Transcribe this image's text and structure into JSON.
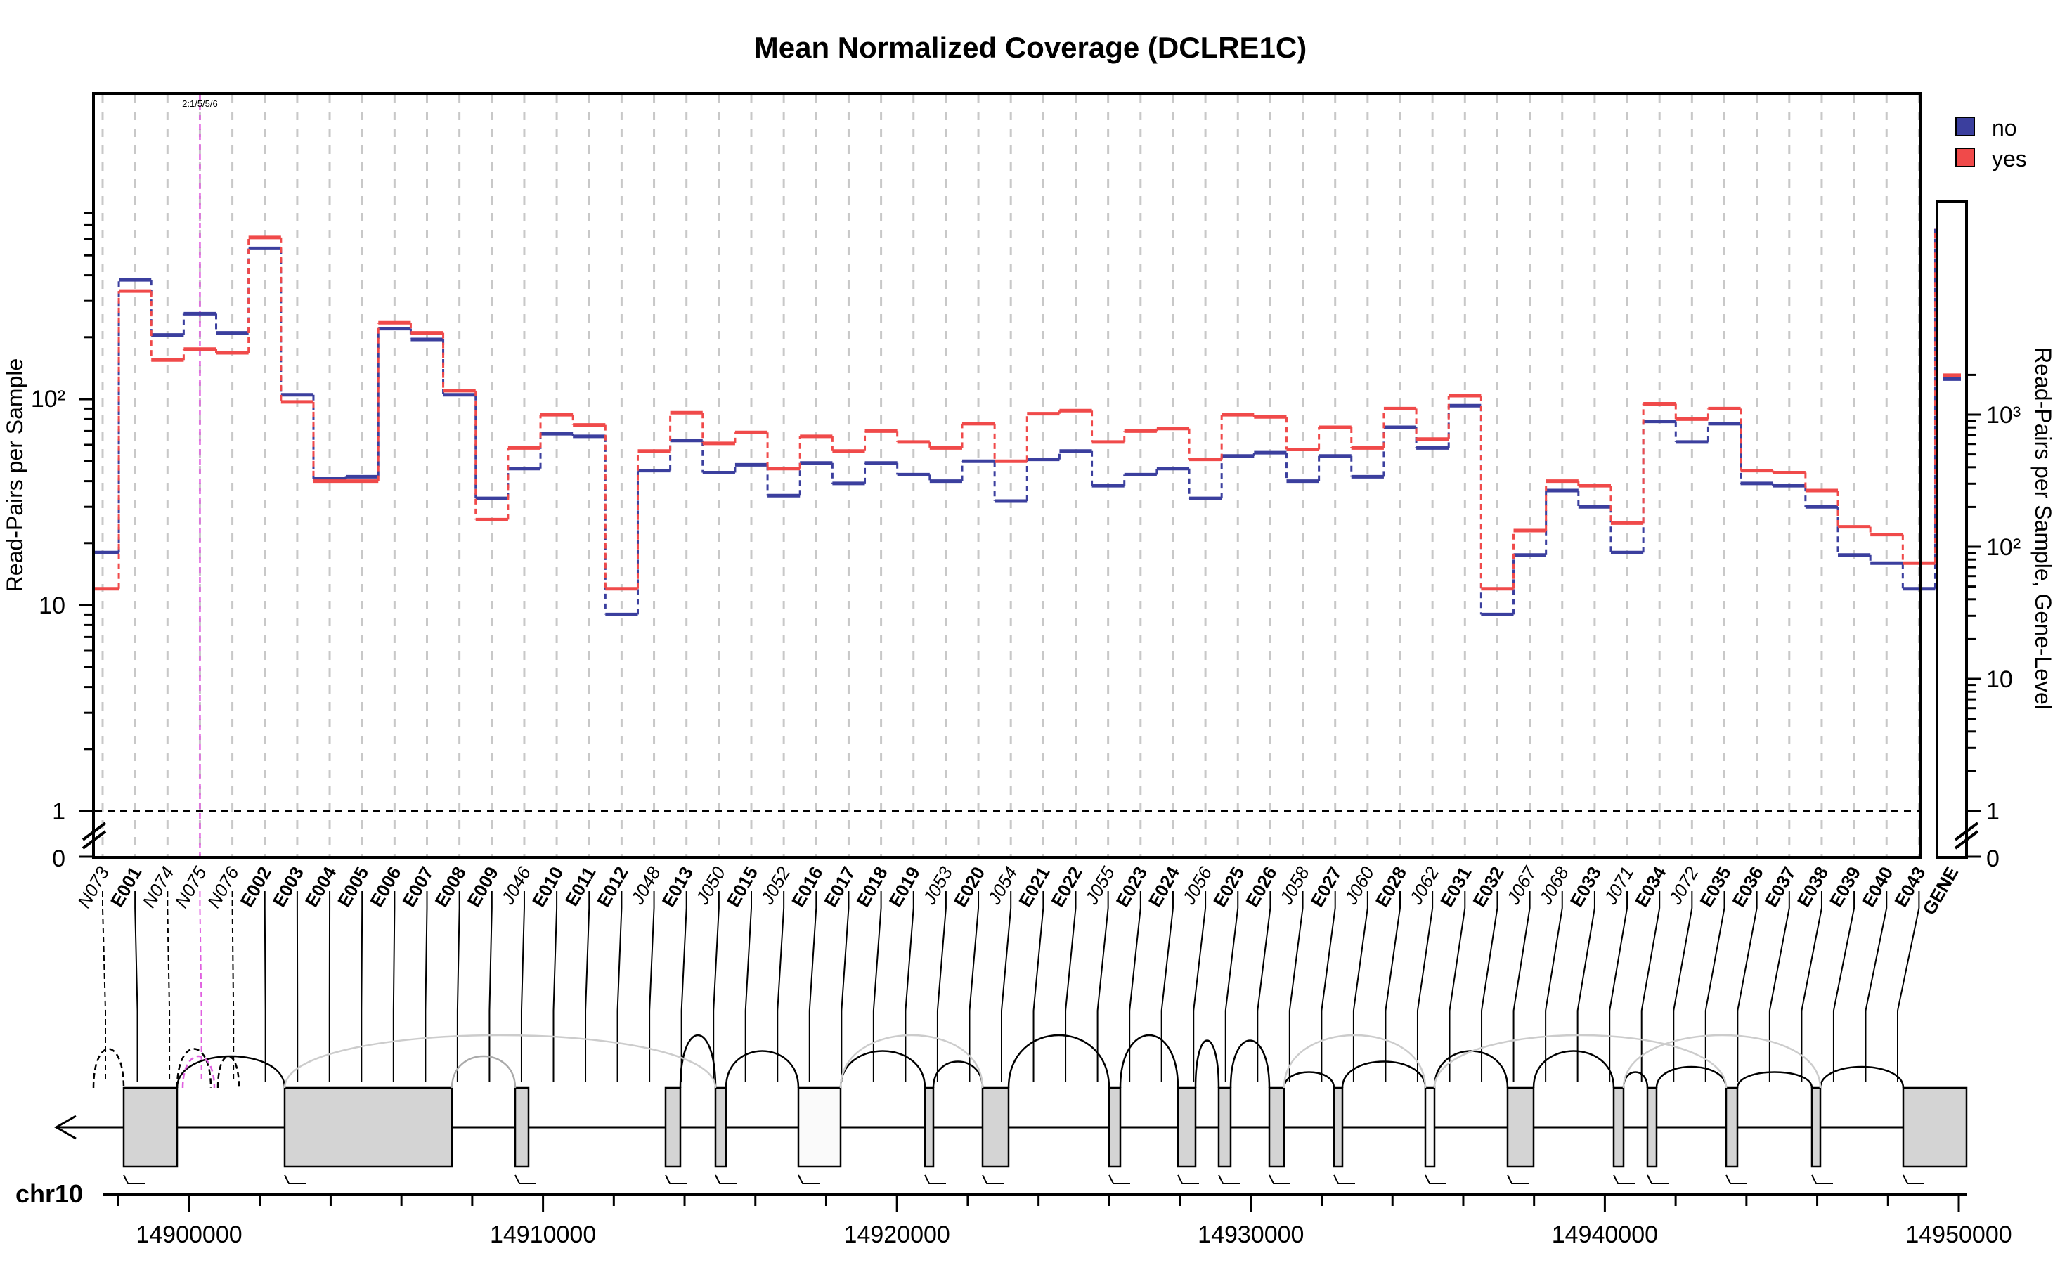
{
  "chart_data": {
    "type": "line",
    "title": "Mean Normalized Coverage (DCLRE1C)",
    "ylabel": "Read-Pairs per Sample",
    "ylabel_right": "Read-Pairs per Sample, Gene-Level",
    "y_scale": "log",
    "ylim": [
      1,
      800
    ],
    "yticks_left": [
      "0",
      "1",
      "10",
      "10²"
    ],
    "yticks_right": [
      "0",
      "1",
      "10",
      "10²",
      "10³"
    ],
    "reference_line_y": 1,
    "grid": "vertical dashed lines at each feature",
    "legend_position": "top-right",
    "highlight_label": "2:1/5/5/6",
    "features": [
      "N073",
      "E001",
      "N074",
      "N075",
      "N076",
      "E002",
      "E003",
      "E004",
      "E005",
      "E006",
      "E007",
      "E008",
      "E009",
      "J046",
      "E010",
      "E011",
      "E012",
      "J048",
      "E013",
      "J050",
      "E015",
      "J052",
      "E016",
      "E017",
      "E018",
      "E019",
      "J053",
      "E020",
      "J054",
      "E021",
      "E022",
      "J055",
      "E023",
      "E024",
      "J056",
      "E025",
      "E026",
      "J058",
      "E027",
      "J060",
      "E028",
      "J062",
      "E031",
      "E032",
      "J067",
      "J068",
      "E033",
      "J071",
      "E034",
      "J072",
      "E035",
      "E036",
      "E037",
      "E038",
      "E039",
      "E040",
      "E043",
      "GENE"
    ],
    "italic_features": [
      "N073",
      "N074",
      "N075",
      "N076",
      "J046",
      "J048",
      "J050",
      "J052",
      "J053",
      "J054",
      "J055",
      "J056",
      "J058",
      "J060",
      "J062",
      "J067",
      "J068",
      "J071",
      "J072"
    ],
    "series": [
      {
        "name": "no",
        "color": "#3b3f9e",
        "values": [
          18,
          380,
          205,
          260,
          210,
          540,
          105,
          41,
          42,
          220,
          195,
          105,
          33,
          46,
          68,
          66,
          9,
          45,
          63,
          44,
          48,
          34,
          49,
          39,
          49,
          43,
          40,
          50,
          32,
          51,
          56,
          38,
          43,
          46,
          33,
          53,
          55,
          40,
          53,
          42,
          73,
          58,
          93,
          9,
          17.5,
          36,
          30,
          18,
          78,
          62,
          76,
          39,
          38,
          30,
          17.5,
          16,
          12
        ]
      },
      {
        "name": "yes",
        "color": "#f04a4a",
        "values": [
          12,
          335,
          155,
          175,
          168,
          610,
          97,
          40,
          40,
          235,
          210,
          110,
          26,
          58,
          84,
          75,
          12,
          56,
          86,
          61,
          69,
          46,
          66,
          56,
          70,
          62,
          58,
          76,
          50,
          85,
          88,
          62,
          70,
          72,
          51,
          84,
          82,
          57,
          73,
          58,
          90,
          64,
          104,
          12,
          23,
          40,
          38,
          25,
          95,
          80,
          90,
          45,
          44,
          36,
          24,
          22,
          16
        ]
      }
    ],
    "gene_level": {
      "no": 1860,
      "yes": 1990
    },
    "genome_axis": {
      "chromosome": "chr10",
      "ticks": [
        "14900000",
        "14910000",
        "14920000",
        "14930000",
        "14940000",
        "14950000"
      ]
    }
  }
}
